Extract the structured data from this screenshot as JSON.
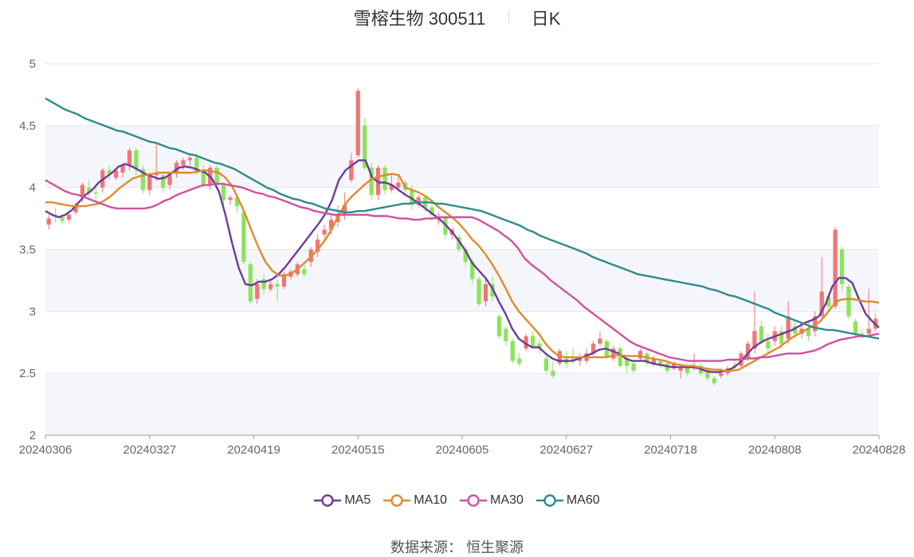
{
  "header": {
    "stock_name": "雪榕生物 300511",
    "period": "日K"
  },
  "footer": {
    "source": "数据来源： 恒生聚源"
  },
  "legend": [
    {
      "name": "MA5",
      "color": "#6a3d9a"
    },
    {
      "name": "MA10",
      "color": "#e08a2e"
    },
    {
      "name": "MA30",
      "color": "#d0519f"
    },
    {
      "name": "MA60",
      "color": "#2e8b8b"
    }
  ],
  "colors": {
    "up": "#f07575",
    "down": "#8ce35a"
  },
  "chart_data": {
    "type": "candlestick",
    "ylim": [
      2,
      5
    ],
    "yticks": [
      "2",
      "2.5",
      "3",
      "3.5",
      "4",
      "4.5",
      "5"
    ],
    "xticks": [
      "20240306",
      "20240327",
      "20240419",
      "20240515",
      "20240605",
      "20240627",
      "20240718",
      "20240808",
      "20240828"
    ],
    "candles": [
      [
        3.7,
        3.75,
        3.66,
        3.78
      ],
      [
        3.78,
        3.76,
        3.72,
        3.84
      ],
      [
        3.76,
        3.73,
        3.7,
        3.78
      ],
      [
        3.74,
        3.78,
        3.72,
        3.8
      ],
      [
        3.8,
        3.86,
        3.78,
        3.88
      ],
      [
        3.92,
        4.02,
        3.88,
        4.04
      ],
      [
        4.0,
        3.96,
        3.92,
        4.06
      ],
      [
        3.96,
        3.95,
        3.9,
        4.0
      ],
      [
        4.0,
        4.14,
        3.96,
        4.16
      ],
      [
        4.14,
        4.11,
        4.06,
        4.18
      ],
      [
        4.08,
        4.14,
        4.06,
        4.16
      ],
      [
        4.12,
        4.18,
        4.08,
        4.2
      ],
      [
        4.18,
        4.3,
        4.14,
        4.32
      ],
      [
        4.3,
        4.15,
        4.1,
        4.32
      ],
      [
        4.15,
        3.98,
        3.95,
        4.18
      ],
      [
        3.98,
        4.1,
        3.94,
        4.12
      ],
      [
        4.1,
        4.12,
        4.05,
        4.35
      ],
      [
        4.1,
        4.0,
        3.96,
        4.12
      ],
      [
        4.02,
        4.1,
        3.98,
        4.12
      ],
      [
        4.12,
        4.2,
        4.08,
        4.22
      ],
      [
        4.18,
        4.22,
        4.14,
        4.24
      ],
      [
        4.22,
        4.24,
        4.18,
        4.26
      ],
      [
        4.24,
        4.12,
        4.1,
        4.28
      ],
      [
        4.12,
        4.02,
        4.0,
        4.18
      ],
      [
        4.02,
        4.16,
        3.98,
        4.18
      ],
      [
        4.16,
        4.02,
        3.98,
        4.18
      ],
      [
        4.02,
        3.9,
        3.86,
        4.04
      ],
      [
        3.9,
        3.92,
        3.86,
        3.94
      ],
      [
        3.92,
        3.85,
        3.8,
        3.94
      ],
      [
        3.8,
        3.4,
        3.38,
        3.82
      ],
      [
        3.38,
        3.08,
        3.06,
        3.4
      ],
      [
        3.1,
        3.22,
        3.06,
        3.26
      ],
      [
        3.26,
        3.18,
        3.14,
        3.3
      ],
      [
        3.18,
        3.22,
        3.16,
        3.26
      ],
      [
        3.22,
        3.2,
        3.08,
        3.26
      ],
      [
        3.2,
        3.3,
        3.18,
        3.32
      ],
      [
        3.28,
        3.32,
        3.26,
        3.34
      ],
      [
        3.3,
        3.38,
        3.28,
        3.4
      ],
      [
        3.34,
        3.3,
        3.28,
        3.38
      ],
      [
        3.4,
        3.5,
        3.36,
        3.52
      ],
      [
        3.48,
        3.58,
        3.44,
        3.62
      ],
      [
        3.62,
        3.66,
        3.58,
        3.7
      ],
      [
        3.66,
        3.74,
        3.62,
        3.78
      ],
      [
        3.72,
        3.78,
        3.68,
        3.86
      ],
      [
        3.78,
        3.86,
        3.74,
        3.96
      ],
      [
        4.06,
        4.22,
        4.04,
        4.28
      ],
      [
        4.26,
        4.78,
        4.24,
        4.8
      ],
      [
        4.5,
        4.16,
        4.14,
        4.56
      ],
      [
        4.16,
        3.94,
        3.9,
        4.2
      ],
      [
        3.94,
        4.16,
        3.9,
        4.18
      ],
      [
        4.16,
        3.98,
        3.94,
        4.18
      ],
      [
        3.98,
        4.02,
        3.96,
        4.12
      ],
      [
        4.0,
        4.04,
        3.96,
        4.1
      ],
      [
        4.04,
        3.98,
        3.94,
        4.06
      ],
      [
        3.98,
        3.86,
        3.82,
        4.02
      ],
      [
        3.86,
        3.92,
        3.84,
        3.94
      ],
      [
        3.92,
        3.84,
        3.8,
        3.94
      ],
      [
        3.84,
        3.78,
        3.74,
        3.86
      ],
      [
        3.74,
        3.76,
        3.7,
        3.8
      ],
      [
        3.76,
        3.62,
        3.58,
        3.78
      ],
      [
        3.62,
        3.66,
        3.58,
        3.68
      ],
      [
        3.6,
        3.5,
        3.48,
        3.62
      ],
      [
        3.5,
        3.4,
        3.36,
        3.52
      ],
      [
        3.4,
        3.26,
        3.22,
        3.42
      ],
      [
        3.26,
        3.06,
        3.04,
        3.28
      ],
      [
        3.08,
        3.22,
        3.04,
        3.26
      ],
      [
        3.22,
        3.12,
        3.08,
        3.28
      ],
      [
        2.96,
        2.8,
        2.78,
        2.98
      ],
      [
        2.86,
        2.76,
        2.72,
        2.88
      ],
      [
        2.76,
        2.6,
        2.58,
        2.78
      ],
      [
        2.62,
        2.58,
        2.56,
        2.66
      ],
      [
        2.7,
        2.8,
        2.68,
        2.82
      ],
      [
        2.8,
        2.72,
        2.7,
        2.84
      ],
      [
        2.74,
        2.7,
        2.66,
        2.78
      ],
      [
        2.62,
        2.52,
        2.5,
        2.66
      ],
      [
        2.52,
        2.48,
        2.46,
        2.6
      ],
      [
        2.58,
        2.68,
        2.56,
        2.7
      ],
      [
        2.62,
        2.58,
        2.54,
        2.68
      ],
      [
        2.62,
        2.6,
        2.58,
        2.7
      ],
      [
        2.6,
        2.62,
        2.56,
        2.66
      ],
      [
        2.6,
        2.66,
        2.58,
        2.7
      ],
      [
        2.66,
        2.74,
        2.64,
        2.76
      ],
      [
        2.74,
        2.78,
        2.72,
        2.84
      ],
      [
        2.76,
        2.64,
        2.62,
        2.78
      ],
      [
        2.62,
        2.7,
        2.6,
        2.72
      ],
      [
        2.7,
        2.56,
        2.54,
        2.72
      ],
      [
        2.62,
        2.56,
        2.5,
        2.64
      ],
      [
        2.58,
        2.52,
        2.5,
        2.6
      ],
      [
        2.62,
        2.68,
        2.6,
        2.7
      ],
      [
        2.66,
        2.58,
        2.56,
        2.68
      ],
      [
        2.58,
        2.62,
        2.56,
        2.64
      ],
      [
        2.6,
        2.56,
        2.54,
        2.62
      ],
      [
        2.58,
        2.52,
        2.5,
        2.6
      ],
      [
        2.54,
        2.58,
        2.52,
        2.6
      ],
      [
        2.52,
        2.54,
        2.46,
        2.56
      ],
      [
        2.56,
        2.5,
        2.48,
        2.58
      ],
      [
        2.54,
        2.56,
        2.52,
        2.66
      ],
      [
        2.56,
        2.5,
        2.48,
        2.58
      ],
      [
        2.52,
        2.46,
        2.44,
        2.54
      ],
      [
        2.46,
        2.42,
        2.4,
        2.48
      ],
      [
        2.48,
        2.5,
        2.46,
        2.54
      ],
      [
        2.5,
        2.54,
        2.48,
        2.56
      ],
      [
        2.56,
        2.54,
        2.52,
        2.62
      ],
      [
        2.56,
        2.66,
        2.54,
        2.68
      ],
      [
        2.62,
        2.74,
        2.6,
        2.76
      ],
      [
        2.7,
        2.84,
        2.66,
        3.16
      ],
      [
        2.88,
        2.76,
        2.74,
        2.92
      ],
      [
        2.76,
        2.7,
        2.66,
        2.82
      ],
      [
        2.76,
        2.84,
        2.72,
        2.88
      ],
      [
        2.84,
        2.74,
        2.7,
        2.88
      ],
      [
        2.78,
        2.96,
        2.74,
        3.08
      ],
      [
        2.88,
        2.82,
        2.78,
        2.92
      ],
      [
        2.82,
        2.86,
        2.78,
        2.9
      ],
      [
        2.86,
        2.8,
        2.76,
        2.92
      ],
      [
        2.84,
        2.96,
        2.8,
        3.0
      ],
      [
        2.96,
        3.16,
        2.92,
        3.44
      ],
      [
        3.12,
        3.04,
        3.0,
        3.14
      ],
      [
        3.04,
        3.66,
        3.02,
        3.68
      ],
      [
        3.5,
        3.22,
        3.16,
        3.52
      ],
      [
        3.2,
        2.96,
        2.94,
        3.22
      ],
      [
        2.92,
        2.82,
        2.8,
        2.94
      ],
      [
        2.82,
        2.8,
        2.78,
        2.86
      ],
      [
        2.82,
        2.86,
        2.8,
        3.18
      ],
      [
        2.86,
        2.94,
        2.84,
        2.98
      ]
    ],
    "ma5": [
      3.81,
      3.78,
      3.76,
      3.78,
      3.82,
      3.88,
      3.94,
      3.98,
      4.04,
      4.08,
      4.12,
      4.17,
      4.19,
      4.17,
      4.14,
      4.11,
      4.09,
      4.07,
      4.08,
      4.12,
      4.16,
      4.17,
      4.16,
      4.14,
      4.12,
      4.07,
      3.97,
      3.78,
      3.55,
      3.35,
      3.22,
      3.21,
      3.24,
      3.24,
      3.26,
      3.3,
      3.36,
      3.43,
      3.5,
      3.57,
      3.64,
      3.71,
      3.79,
      3.9,
      4.06,
      4.14,
      4.18,
      4.22,
      4.22,
      4.08,
      4.04,
      4.04,
      4.02,
      3.98,
      3.94,
      3.91,
      3.87,
      3.83,
      3.79,
      3.75,
      3.7,
      3.64,
      3.57,
      3.49,
      3.39,
      3.33,
      3.27,
      3.19,
      3.08,
      2.98,
      2.86,
      2.78,
      2.74,
      2.71,
      2.71,
      2.66,
      2.62,
      2.6,
      2.6,
      2.6,
      2.62,
      2.64,
      2.66,
      2.69,
      2.7,
      2.68,
      2.66,
      2.62,
      2.6,
      2.6,
      2.6,
      2.58,
      2.57,
      2.56,
      2.55,
      2.55,
      2.55,
      2.55,
      2.54,
      2.52,
      2.51,
      2.51,
      2.52,
      2.54,
      2.58,
      2.64,
      2.7,
      2.74,
      2.77,
      2.79,
      2.81,
      2.83,
      2.85,
      2.88,
      2.91,
      2.93,
      2.96,
      3.06,
      3.2,
      3.27,
      3.27,
      3.23,
      3.1,
      2.98,
      2.92,
      2.87
    ],
    "ma10": [
      3.88,
      3.88,
      3.87,
      3.86,
      3.85,
      3.85,
      3.85,
      3.86,
      3.87,
      3.9,
      3.94,
      3.99,
      4.03,
      4.07,
      4.09,
      4.1,
      4.11,
      4.12,
      4.12,
      4.12,
      4.12,
      4.12,
      4.12,
      4.13,
      4.14,
      4.13,
      4.12,
      4.08,
      4.01,
      3.9,
      3.78,
      3.64,
      3.51,
      3.4,
      3.33,
      3.29,
      3.29,
      3.31,
      3.35,
      3.4,
      3.45,
      3.51,
      3.58,
      3.67,
      3.78,
      3.87,
      3.93,
      3.98,
      4.03,
      4.07,
      4.09,
      4.1,
      4.11,
      4.1,
      4.0,
      3.98,
      3.96,
      3.93,
      3.89,
      3.84,
      3.8,
      3.76,
      3.71,
      3.65,
      3.58,
      3.53,
      3.46,
      3.38,
      3.29,
      3.19,
      3.08,
      3.0,
      2.94,
      2.88,
      2.82,
      2.74,
      2.68,
      2.64,
      2.63,
      2.63,
      2.63,
      2.63,
      2.63,
      2.63,
      2.63,
      2.64,
      2.65,
      2.64,
      2.64,
      2.64,
      2.63,
      2.62,
      2.61,
      2.6,
      2.58,
      2.57,
      2.56,
      2.56,
      2.55,
      2.54,
      2.53,
      2.53,
      2.52,
      2.52,
      2.53,
      2.56,
      2.59,
      2.62,
      2.65,
      2.68,
      2.71,
      2.75,
      2.79,
      2.82,
      2.85,
      2.88,
      2.91,
      2.97,
      3.04,
      3.09,
      3.1,
      3.1,
      3.09,
      3.08,
      3.08,
      3.07
    ],
    "ma30": [
      4.06,
      4.03,
      4.0,
      3.97,
      3.95,
      3.94,
      3.92,
      3.9,
      3.88,
      3.86,
      3.84,
      3.83,
      3.83,
      3.83,
      3.83,
      3.83,
      3.84,
      3.86,
      3.89,
      3.91,
      3.94,
      3.96,
      3.98,
      4.0,
      4.02,
      4.02,
      4.03,
      4.03,
      4.02,
      4.01,
      4.0,
      3.98,
      3.96,
      3.95,
      3.93,
      3.92,
      3.9,
      3.88,
      3.86,
      3.84,
      3.83,
      3.81,
      3.8,
      3.79,
      3.78,
      3.78,
      3.78,
      3.78,
      3.78,
      3.78,
      3.77,
      3.77,
      3.77,
      3.76,
      3.75,
      3.75,
      3.74,
      3.74,
      3.75,
      3.75,
      3.76,
      3.76,
      3.76,
      3.76,
      3.76,
      3.76,
      3.74,
      3.71,
      3.68,
      3.65,
      3.61,
      3.57,
      3.51,
      3.43,
      3.38,
      3.34,
      3.3,
      3.25,
      3.21,
      3.17,
      3.13,
      3.09,
      3.04,
      3.0,
      2.96,
      2.92,
      2.88,
      2.84,
      2.8,
      2.76,
      2.73,
      2.71,
      2.69,
      2.67,
      2.65,
      2.63,
      2.62,
      2.61,
      2.6,
      2.6,
      2.6,
      2.6,
      2.6,
      2.6,
      2.61,
      2.61,
      2.61,
      2.62,
      2.62,
      2.63,
      2.63,
      2.64,
      2.65,
      2.66,
      2.66,
      2.66,
      2.67,
      2.68,
      2.7,
      2.73,
      2.75,
      2.77,
      2.78,
      2.79,
      2.8,
      2.8,
      2.81,
      2.82
    ],
    "ma60": [
      4.72,
      4.69,
      4.66,
      4.63,
      4.61,
      4.59,
      4.56,
      4.54,
      4.52,
      4.5,
      4.48,
      4.46,
      4.45,
      4.43,
      4.41,
      4.39,
      4.37,
      4.36,
      4.34,
      4.32,
      4.31,
      4.29,
      4.27,
      4.26,
      4.24,
      4.22,
      4.2,
      4.19,
      4.17,
      4.15,
      4.12,
      4.09,
      4.06,
      4.03,
      4.0,
      3.98,
      3.95,
      3.93,
      3.91,
      3.9,
      3.88,
      3.87,
      3.85,
      3.83,
      3.82,
      3.81,
      3.8,
      3.8,
      3.81,
      3.81,
      3.82,
      3.83,
      3.84,
      3.85,
      3.86,
      3.87,
      3.87,
      3.88,
      3.88,
      3.88,
      3.87,
      3.87,
      3.86,
      3.85,
      3.84,
      3.83,
      3.82,
      3.81,
      3.79,
      3.77,
      3.75,
      3.73,
      3.71,
      3.69,
      3.66,
      3.64,
      3.61,
      3.59,
      3.57,
      3.55,
      3.53,
      3.51,
      3.49,
      3.47,
      3.44,
      3.42,
      3.4,
      3.38,
      3.36,
      3.34,
      3.32,
      3.3,
      3.29,
      3.28,
      3.27,
      3.26,
      3.25,
      3.24,
      3.23,
      3.22,
      3.21,
      3.2,
      3.18,
      3.17,
      3.15,
      3.13,
      3.12,
      3.1,
      3.08,
      3.06,
      3.04,
      3.02,
      2.99,
      2.97,
      2.95,
      2.93,
      2.91,
      2.89,
      2.87,
      2.86,
      2.85,
      2.85,
      2.84,
      2.83,
      2.82,
      2.81,
      2.8,
      2.79,
      2.78
    ]
  }
}
